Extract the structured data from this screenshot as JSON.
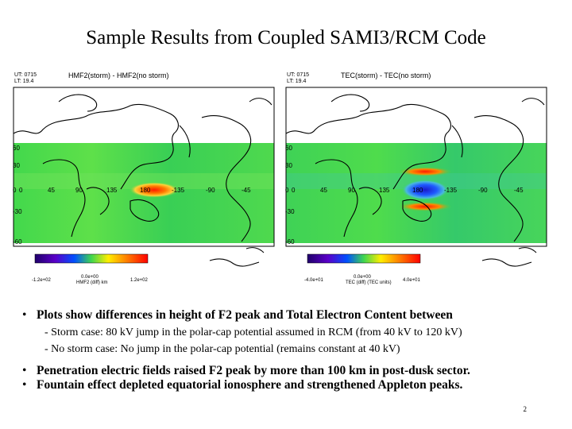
{
  "slide": {
    "title": "Sample Results from Coupled SAMI3/RCM Code",
    "page_number": "2"
  },
  "panels": [
    {
      "ut": "UT: 0715",
      "lt": "LT: 19.4",
      "title": "HMF2(storm) - HMF2(no storm)",
      "lat_labels": [
        "60",
        "30",
        "0",
        "-30",
        "-60"
      ],
      "lon_labels": [
        "0",
        "45",
        "90",
        "135",
        "180",
        "-135",
        "-90",
        "-45"
      ],
      "colorbar": {
        "min": "-1.2e+02",
        "mid": "0.0e+00",
        "max": "1.2e+02",
        "units": "HMF2 (diff) km"
      }
    },
    {
      "ut": "UT: 0715",
      "lt": "LT: 19.4",
      "title": "TEC(storm) - TEC(no storm)",
      "lat_labels": [
        "60",
        "30",
        "0",
        "-30",
        "-60"
      ],
      "lon_labels": [
        "0",
        "45",
        "90",
        "135",
        "180",
        "-135",
        "-90",
        "-45"
      ],
      "colorbar": {
        "min": "-4.0e+01",
        "mid": "0.0e+00",
        "max": "4.0e+01",
        "units": "TEC (diff) (TEC units)"
      }
    }
  ],
  "bullets": {
    "b1": "Plots show differences in height of F2 peak and Total Electron Content between",
    "sub1": "- Storm case: 80 kV jump in the polar-cap potential assumed in RCM (from 40 kV to 120 kV)",
    "sub2": "- No storm case:  No jump in the polar-cap potential (remains constant at 40 kV)",
    "b2": "Penetration electric fields raised F2 peak by more than 100 km in post-dusk sector.",
    "b3": "Fountain effect depleted equatorial ionosphere and strengthened Appleton peaks."
  },
  "colors": {
    "field_green": "#3fd64f",
    "storm_red": "#ff2a00",
    "depletion_blue": "#1f3fff",
    "coast": "#000000"
  }
}
